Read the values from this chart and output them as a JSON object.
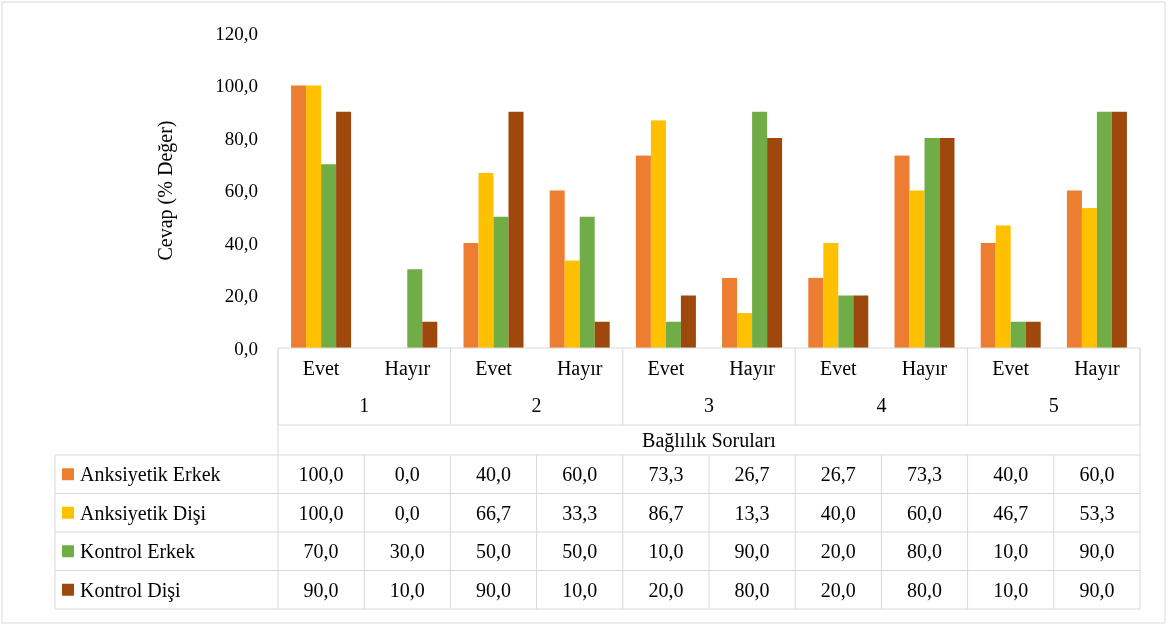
{
  "chart_data": {
    "type": "bar",
    "ylabel": "Cevap (% Değer)",
    "xlabel": "Bağlılık Soruları",
    "categories": [
      "Evet",
      "Hayır",
      "Evet",
      "Hayır",
      "Evet",
      "Hayır",
      "Evet",
      "Hayır",
      "Evet",
      "Hayır"
    ],
    "annotations": [
      "1",
      "2",
      "3",
      "4",
      "5"
    ],
    "ylim": [
      0,
      120
    ],
    "yticks": [
      {
        "value": 0,
        "label": "0,0"
      },
      {
        "value": 20,
        "label": "20,0"
      },
      {
        "value": 40,
        "label": "40,0"
      },
      {
        "value": 60,
        "label": "60,0"
      },
      {
        "value": 80,
        "label": "80,0"
      },
      {
        "value": 100,
        "label": "100,0"
      },
      {
        "value": 120,
        "label": "120,0"
      }
    ],
    "series": [
      {
        "name": "Anksiyetik Erkek",
        "color": "#ed7d31",
        "values": [
          100,
          0,
          40,
          60,
          73.3,
          26.7,
          26.7,
          73.3,
          40,
          60
        ],
        "value_labels": [
          "100,0",
          "0,0",
          "40,0",
          "60,0",
          "73,3",
          "26,7",
          "26,7",
          "73,3",
          "40,0",
          "60,0"
        ]
      },
      {
        "name": "Anksiyetik Dişi",
        "color": "#ffc000",
        "values": [
          100,
          0,
          66.7,
          33.3,
          86.7,
          13.3,
          40,
          60,
          46.7,
          53.3
        ],
        "value_labels": [
          "100,0",
          "0,0",
          "66,7",
          "33,3",
          "86,7",
          "13,3",
          "40,0",
          "60,0",
          "46,7",
          "53,3"
        ]
      },
      {
        "name": "Kontrol Erkek",
        "color": "#70ad47",
        "values": [
          70,
          30,
          50,
          50,
          10,
          90,
          20,
          80,
          10,
          90
        ],
        "value_labels": [
          "70,0",
          "30,0",
          "50,0",
          "50,0",
          "10,0",
          "90,0",
          "20,0",
          "80,0",
          "10,0",
          "90,0"
        ]
      },
      {
        "name": "Kontrol Dişi",
        "color": "#9e480e",
        "values": [
          90,
          10,
          90,
          10,
          20,
          80,
          20,
          80,
          10,
          90
        ],
        "value_labels": [
          "90,0",
          "10,0",
          "90,0",
          "10,0",
          "20,0",
          "80,0",
          "20,0",
          "80,0",
          "10,0",
          "90,0"
        ]
      }
    ],
    "legend": "bottom"
  }
}
